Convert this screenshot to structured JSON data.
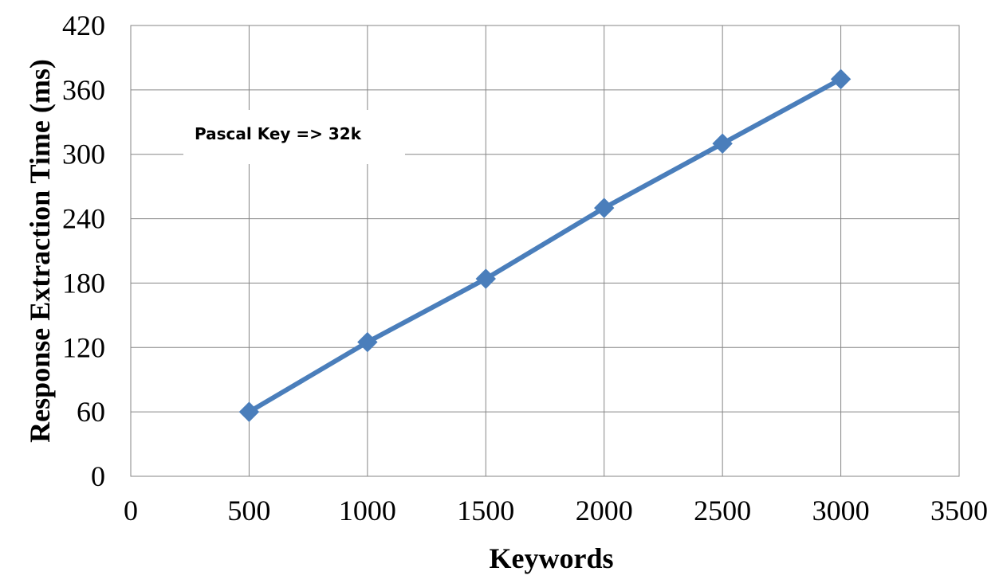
{
  "chart_data": {
    "type": "line",
    "title": "",
    "xlabel": "Keywords",
    "ylabel": "Response Extraction Time (ms)",
    "xlim": [
      0,
      3500
    ],
    "ylim": [
      0,
      420
    ],
    "xticks": [
      0,
      500,
      1000,
      1500,
      2000,
      2500,
      3000,
      3500
    ],
    "yticks": [
      0,
      60,
      120,
      180,
      240,
      300,
      360,
      420
    ],
    "grid": true,
    "legend": "none",
    "annotation": "Pascal Key => 32k",
    "series": [
      {
        "name": "Pascal Key => 32k",
        "color": "#4a7ebb",
        "marker": "diamond",
        "x": [
          500,
          1000,
          1500,
          2000,
          2500,
          3000
        ],
        "y": [
          60,
          125,
          184,
          250,
          310,
          370
        ]
      }
    ]
  }
}
